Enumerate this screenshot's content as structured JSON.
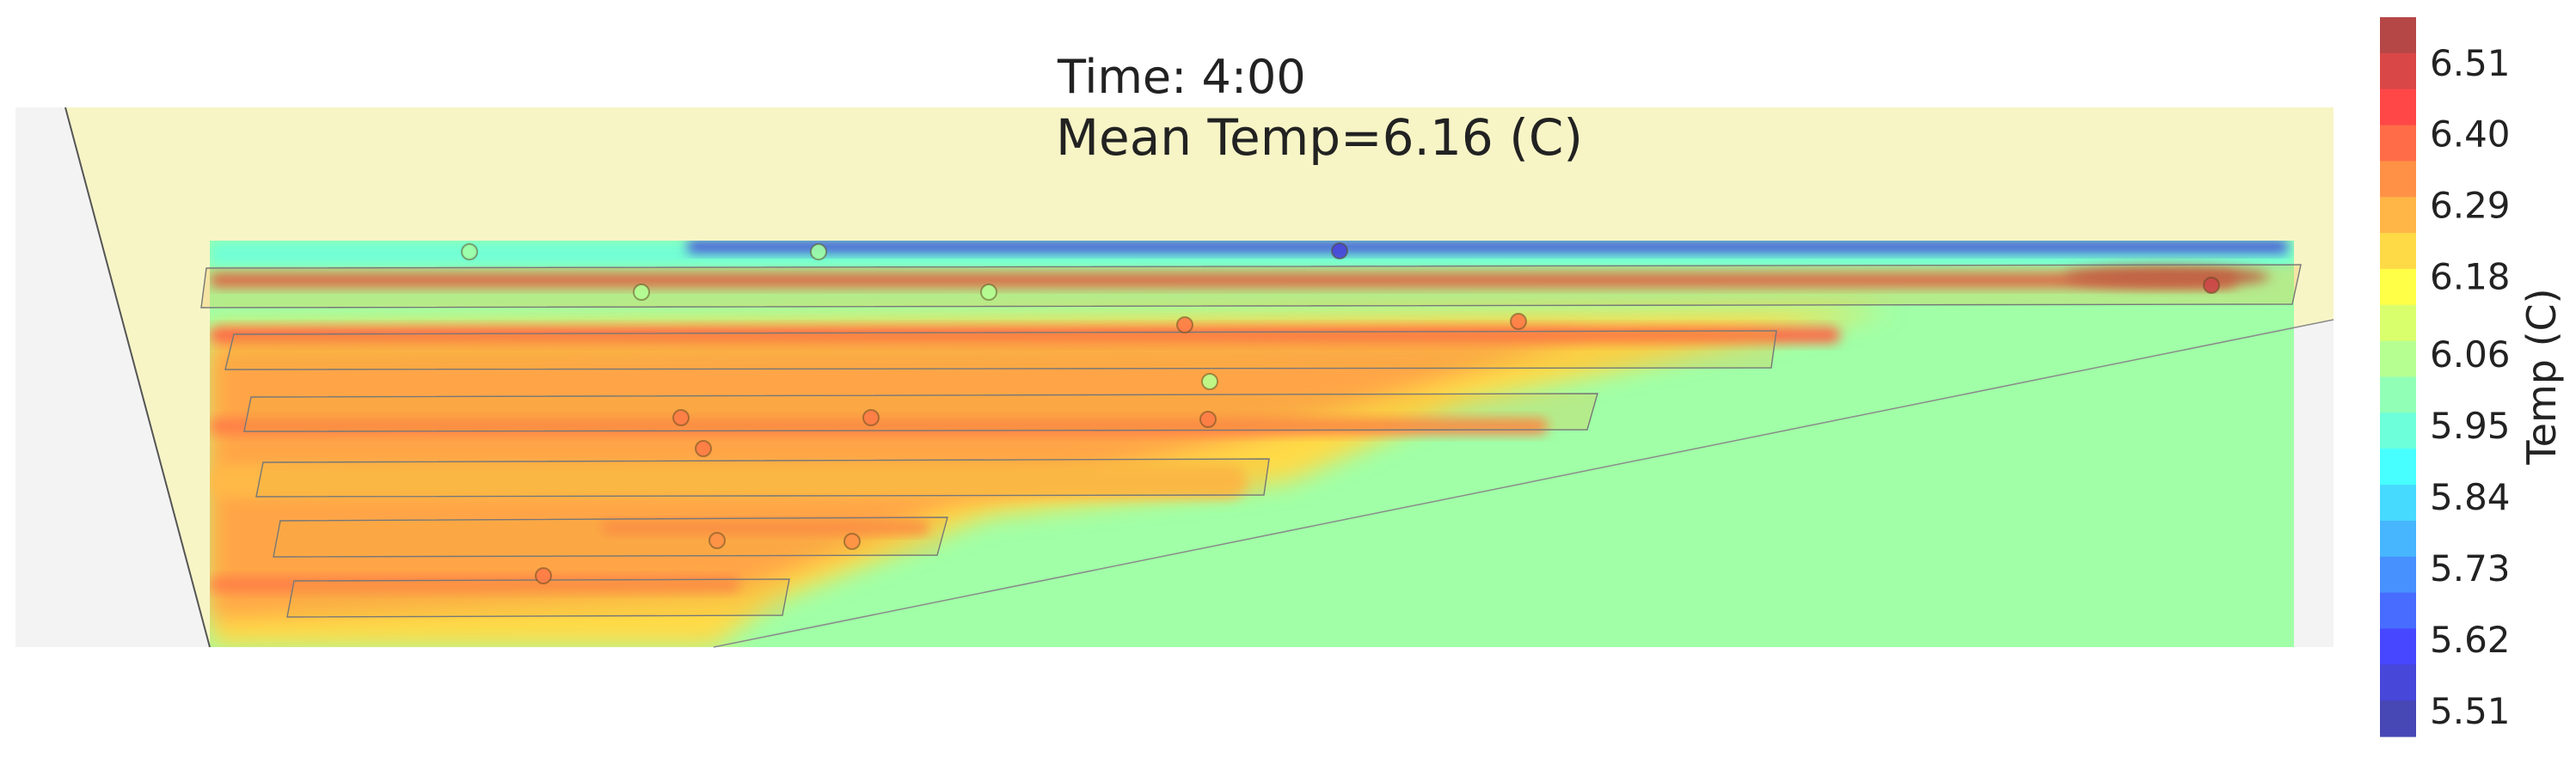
{
  "chart_data": {
    "type": "heatmap",
    "title": "Time: 4:00",
    "subtitle": "Mean Temp=6.16 (C)",
    "colorbar": {
      "label": "Temp (C)",
      "min": 5.47,
      "max": 6.58,
      "ticks": [
        "6.51",
        "6.40",
        "6.29",
        "6.18",
        "6.06",
        "5.95",
        "5.84",
        "5.73",
        "5.62",
        "5.51"
      ],
      "tick_values": [
        6.51,
        6.4,
        6.29,
        6.18,
        6.06,
        5.95,
        5.84,
        5.73,
        5.62,
        5.51
      ],
      "levels": 20,
      "colormap": "jet"
    },
    "background_temp": 6.02,
    "sensors": [
      {
        "row": 0,
        "temp": 6.02
      },
      {
        "row": 0,
        "temp": 6.02
      },
      {
        "row": 0,
        "temp": 5.55
      },
      {
        "row": 1,
        "temp": 6.05
      },
      {
        "row": 1,
        "temp": 6.05
      },
      {
        "row": 1,
        "temp": 6.52
      },
      {
        "row": 2,
        "temp": 6.36
      },
      {
        "row": 2,
        "temp": 6.36
      },
      {
        "row": 3,
        "temp": 6.06
      },
      {
        "row": 3,
        "temp": 6.36
      },
      {
        "row": 3,
        "temp": 6.36
      },
      {
        "row": 3,
        "temp": 6.36
      },
      {
        "row": 4,
        "temp": 6.36
      },
      {
        "row": 5,
        "temp": 6.33
      },
      {
        "row": 5,
        "temp": 6.33
      },
      {
        "row": 6,
        "temp": 6.36
      }
    ],
    "colors": {
      "background_plane": "#f7f5c6",
      "outer_plane": "#f2f2f2",
      "plane_edge": "#555555"
    }
  }
}
